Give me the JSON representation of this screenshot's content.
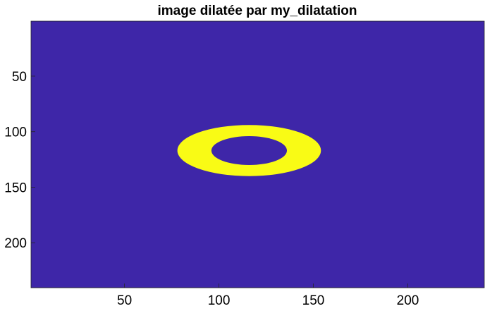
{
  "figure": {
    "title": "image dilatée par my_dilatation"
  },
  "image_data": {
    "type": "image",
    "width": 240,
    "height": 240,
    "xlim": [
      0.5,
      240.5
    ],
    "ylim": [
      0.5,
      240.5
    ],
    "y_direction": "reverse",
    "x_ticks": [
      50,
      100,
      150,
      200
    ],
    "x_tick_labels": [
      "50",
      "100",
      "150",
      "200"
    ],
    "y_ticks": [
      50,
      100,
      150,
      200
    ],
    "y_tick_labels": [
      "50",
      "100",
      "150",
      "200"
    ],
    "background_color": "#3e26a8",
    "foreground_color": "#f9fb15",
    "ring": {
      "center": [
        116,
        117
      ],
      "outer_radii": [
        38,
        23
      ],
      "inner_radii": [
        20,
        13
      ]
    }
  }
}
